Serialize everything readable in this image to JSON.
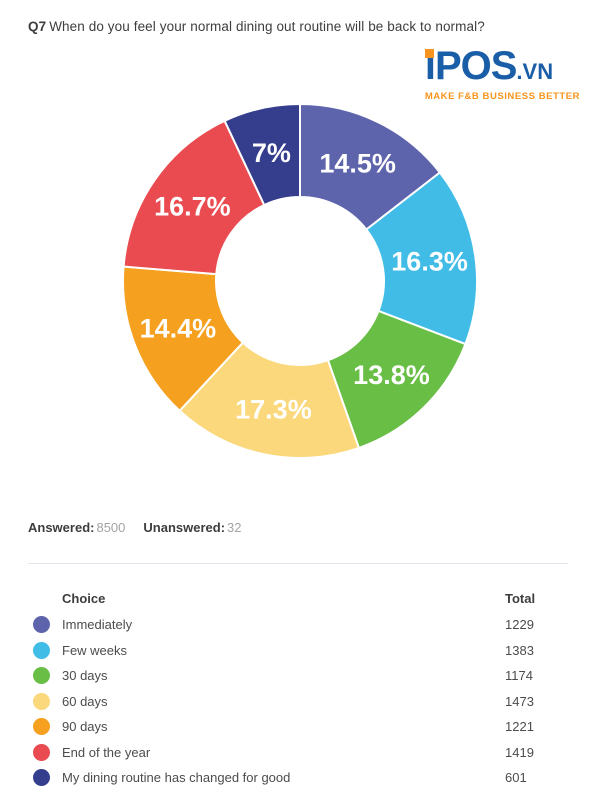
{
  "header": {
    "question_number": "Q7",
    "question_text": "When do you feel your normal dining out routine will be back to normal?"
  },
  "logo": {
    "brand_i": "i",
    "brand_rest": "POS",
    "brand_tld": ".VN",
    "tagline": "MAKE F&B BUSINESS BETTER",
    "color_blue": "#1b5ea8",
    "color_orange": "#f7941d"
  },
  "stats": {
    "answered_label": "Answered:",
    "answered_value": "8500",
    "unanswered_label": "Unanswered:",
    "unanswered_value": "32"
  },
  "table": {
    "choice_header": "Choice",
    "total_header": "Total",
    "rows": [
      {
        "label": "Immediately",
        "total": "1229",
        "color": "#5e64ac"
      },
      {
        "label": "Few weeks",
        "total": "1383",
        "color": "#41bce7"
      },
      {
        "label": "30 days",
        "total": "1174",
        "color": "#69be46"
      },
      {
        "label": "60 days",
        "total": "1473",
        "color": "#fad87b"
      },
      {
        "label": "90 days",
        "total": "1221",
        "color": "#f5a01e"
      },
      {
        "label": "End of the year",
        "total": "1419",
        "color": "#e94b50"
      },
      {
        "label": "My dining routine has changed for good",
        "total": "601",
        "color": "#353e8d"
      }
    ]
  },
  "chart_data": {
    "type": "pie",
    "subtype": "donut",
    "title": "Q7 When do you feel your normal dining out routine will be back to normal?",
    "categories": [
      "Immediately",
      "Few weeks",
      "30 days",
      "60 days",
      "90 days",
      "End of the year",
      "My dining routine has changed for good"
    ],
    "values_percent": [
      14.5,
      16.3,
      13.8,
      17.3,
      14.4,
      16.7,
      7
    ],
    "counts": [
      1229,
      1383,
      1174,
      1473,
      1221,
      1419,
      601
    ],
    "slice_labels": [
      "14.5%",
      "16.3%",
      "13.8%",
      "17.3%",
      "14.4%",
      "16.7%",
      "7%"
    ],
    "colors": [
      "#5e64ac",
      "#41bce7",
      "#69be46",
      "#fad87b",
      "#f5a01e",
      "#e94b50",
      "#353e8d"
    ],
    "start_angle_deg": 0,
    "direction": "clockwise",
    "legend_position": "table-below",
    "answered": 8500,
    "unanswered": 32
  }
}
